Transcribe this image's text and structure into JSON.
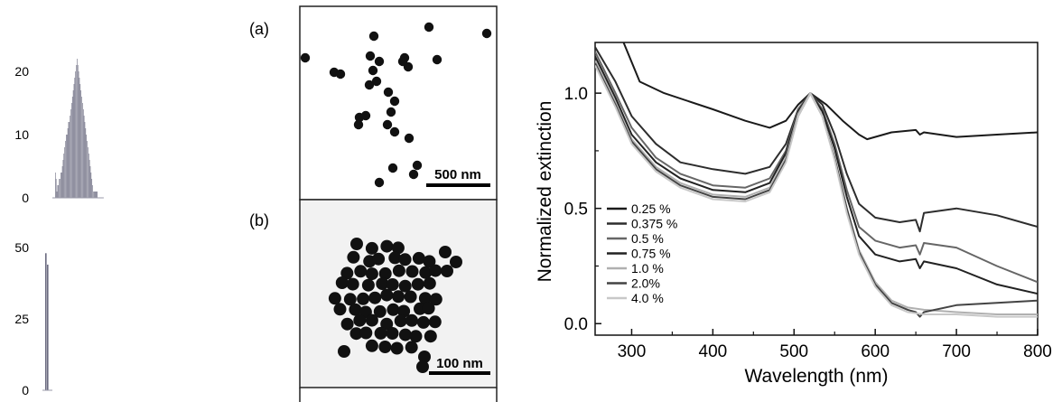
{
  "panels": {
    "a_label": "(a)",
    "a_scale": "500 nm",
    "b_label": "(b)",
    "b_scale": "100 nm"
  },
  "chart_data": [
    {
      "type": "bar",
      "yticks": [
        "0",
        "10",
        "20"
      ],
      "ylim": [
        0,
        24
      ],
      "values": [
        4,
        3,
        1,
        2,
        2,
        3,
        3,
        4,
        4,
        5,
        6,
        7,
        8,
        9,
        10,
        10,
        11,
        12,
        12,
        13,
        14,
        15,
        16,
        17,
        18,
        19,
        20,
        21,
        22,
        21,
        20,
        19,
        18,
        17,
        16,
        15,
        14,
        13,
        12,
        11,
        10,
        9,
        8,
        7,
        6,
        5,
        4,
        3,
        2,
        1,
        1,
        1,
        1,
        1,
        1,
        0,
        0,
        0
      ]
    },
    {
      "type": "bar",
      "yticks": [
        "0",
        "25",
        "50"
      ],
      "ylim": [
        0,
        56
      ],
      "values": [
        48,
        44
      ]
    },
    {
      "type": "line",
      "xlabel": "Wavelength (nm)",
      "ylabel": "Normalized extinction",
      "xlim": [
        255,
        800
      ],
      "ylim": [
        -0.05,
        1.22
      ],
      "xticks": [
        "300",
        "400",
        "500",
        "600",
        "700",
        "800"
      ],
      "yticks": [
        "0.0",
        "0.5",
        "1.0"
      ],
      "legend_position": "bottom-left",
      "series": [
        {
          "name": "0.25 %",
          "color": "#1a1a1a",
          "points": [
            [
              290,
              1.22
            ],
            [
              310,
              1.05
            ],
            [
              340,
              1.0
            ],
            [
              400,
              0.93
            ],
            [
              440,
              0.88
            ],
            [
              470,
              0.85
            ],
            [
              490,
              0.88
            ],
            [
              505,
              0.95
            ],
            [
              520,
              1.0
            ],
            [
              540,
              0.95
            ],
            [
              560,
              0.88
            ],
            [
              580,
              0.82
            ],
            [
              590,
              0.8
            ],
            [
              620,
              0.83
            ],
            [
              650,
              0.84
            ],
            [
              655,
              0.82
            ],
            [
              660,
              0.83
            ],
            [
              700,
              0.81
            ],
            [
              750,
              0.82
            ],
            [
              800,
              0.83
            ]
          ]
        },
        {
          "name": "0.375 %",
          "color": "#2d2d2d",
          "points": [
            [
              255,
              1.2
            ],
            [
              280,
              1.05
            ],
            [
              300,
              0.9
            ],
            [
              330,
              0.78
            ],
            [
              360,
              0.7
            ],
            [
              400,
              0.67
            ],
            [
              440,
              0.65
            ],
            [
              470,
              0.68
            ],
            [
              490,
              0.78
            ],
            [
              505,
              0.93
            ],
            [
              520,
              1.0
            ],
            [
              535,
              0.95
            ],
            [
              550,
              0.82
            ],
            [
              565,
              0.65
            ],
            [
              580,
              0.52
            ],
            [
              600,
              0.46
            ],
            [
              630,
              0.44
            ],
            [
              650,
              0.45
            ],
            [
              655,
              0.4
            ],
            [
              660,
              0.48
            ],
            [
              700,
              0.5
            ],
            [
              750,
              0.47
            ],
            [
              800,
              0.42
            ]
          ]
        },
        {
          "name": "0.5 %",
          "color": "#666666",
          "points": [
            [
              255,
              1.18
            ],
            [
              280,
              1.0
            ],
            [
              300,
              0.85
            ],
            [
              330,
              0.72
            ],
            [
              360,
              0.65
            ],
            [
              400,
              0.6
            ],
            [
              440,
              0.59
            ],
            [
              470,
              0.63
            ],
            [
              490,
              0.75
            ],
            [
              505,
              0.93
            ],
            [
              520,
              1.0
            ],
            [
              535,
              0.93
            ],
            [
              550,
              0.78
            ],
            [
              565,
              0.58
            ],
            [
              580,
              0.42
            ],
            [
              600,
              0.36
            ],
            [
              630,
              0.33
            ],
            [
              650,
              0.34
            ],
            [
              655,
              0.3
            ],
            [
              660,
              0.35
            ],
            [
              700,
              0.33
            ],
            [
              750,
              0.25
            ],
            [
              800,
              0.18
            ]
          ]
        },
        {
          "name": "0.75 %",
          "color": "#222222",
          "points": [
            [
              255,
              1.16
            ],
            [
              280,
              0.98
            ],
            [
              300,
              0.82
            ],
            [
              330,
              0.7
            ],
            [
              360,
              0.63
            ],
            [
              400,
              0.58
            ],
            [
              440,
              0.57
            ],
            [
              470,
              0.61
            ],
            [
              490,
              0.74
            ],
            [
              505,
              0.92
            ],
            [
              520,
              1.0
            ],
            [
              535,
              0.92
            ],
            [
              550,
              0.76
            ],
            [
              565,
              0.55
            ],
            [
              580,
              0.38
            ],
            [
              600,
              0.3
            ],
            [
              630,
              0.27
            ],
            [
              650,
              0.28
            ],
            [
              655,
              0.24
            ],
            [
              660,
              0.27
            ],
            [
              700,
              0.24
            ],
            [
              750,
              0.17
            ],
            [
              800,
              0.13
            ]
          ]
        },
        {
          "name": "1.0 %",
          "color": "#b0b0b0",
          "points": [
            [
              255,
              1.14
            ],
            [
              280,
              0.96
            ],
            [
              300,
              0.8
            ],
            [
              330,
              0.68
            ],
            [
              360,
              0.61
            ],
            [
              400,
              0.56
            ],
            [
              440,
              0.55
            ],
            [
              470,
              0.59
            ],
            [
              490,
              0.72
            ],
            [
              505,
              0.91
            ],
            [
              520,
              1.0
            ],
            [
              535,
              0.9
            ],
            [
              550,
              0.72
            ],
            [
              565,
              0.5
            ],
            [
              580,
              0.32
            ],
            [
              600,
              0.18
            ],
            [
              620,
              0.1
            ],
            [
              640,
              0.07
            ],
            [
              660,
              0.06
            ],
            [
              700,
              0.05
            ],
            [
              750,
              0.04
            ],
            [
              800,
              0.04
            ]
          ]
        },
        {
          "name": "2.0%",
          "color": "#444444",
          "points": [
            [
              255,
              1.13
            ],
            [
              280,
              0.95
            ],
            [
              300,
              0.79
            ],
            [
              330,
              0.67
            ],
            [
              360,
              0.6
            ],
            [
              400,
              0.55
            ],
            [
              440,
              0.54
            ],
            [
              470,
              0.58
            ],
            [
              490,
              0.71
            ],
            [
              505,
              0.9
            ],
            [
              520,
              1.0
            ],
            [
              535,
              0.9
            ],
            [
              550,
              0.72
            ],
            [
              565,
              0.5
            ],
            [
              580,
              0.31
            ],
            [
              600,
              0.17
            ],
            [
              620,
              0.09
            ],
            [
              640,
              0.06
            ],
            [
              650,
              0.05
            ],
            [
              655,
              0.03
            ],
            [
              660,
              0.05
            ],
            [
              700,
              0.08
            ],
            [
              750,
              0.09
            ],
            [
              800,
              0.1
            ]
          ]
        },
        {
          "name": "4.0 %",
          "color": "#c8c8c8",
          "points": [
            [
              255,
              1.12
            ],
            [
              280,
              0.94
            ],
            [
              300,
              0.78
            ],
            [
              330,
              0.66
            ],
            [
              360,
              0.59
            ],
            [
              400,
              0.54
            ],
            [
              440,
              0.53
            ],
            [
              470,
              0.57
            ],
            [
              490,
              0.7
            ],
            [
              505,
              0.9
            ],
            [
              520,
              1.0
            ],
            [
              535,
              0.9
            ],
            [
              550,
              0.71
            ],
            [
              565,
              0.48
            ],
            [
              580,
              0.3
            ],
            [
              600,
              0.16
            ],
            [
              620,
              0.08
            ],
            [
              640,
              0.05
            ],
            [
              660,
              0.04
            ],
            [
              700,
              0.04
            ],
            [
              750,
              0.03
            ],
            [
              800,
              0.03
            ]
          ]
        }
      ]
    }
  ]
}
